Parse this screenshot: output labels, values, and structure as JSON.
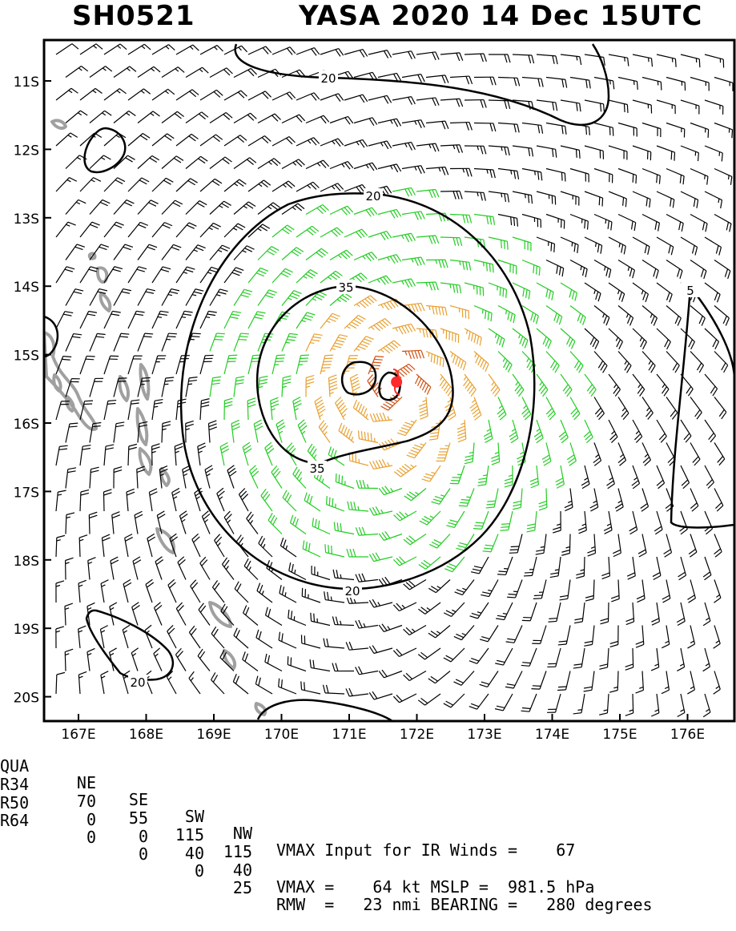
{
  "header": {
    "storm_id": "SH0521",
    "storm_info": "YASA 2020 14 Dec 15UTC"
  },
  "map": {
    "lat_labels": [
      "11S",
      "12S",
      "13S",
      "14S",
      "15S",
      "16S",
      "17S",
      "18S",
      "19S",
      "20S"
    ],
    "lon_labels": [
      "167E",
      "168E",
      "169E",
      "170E",
      "171E",
      "172E",
      "173E",
      "174E",
      "175E",
      "176E"
    ],
    "contour_labels": [
      "20",
      "20",
      "35",
      "35",
      "20",
      "5",
      "20"
    ],
    "colors": {
      "barb_default": "#000000",
      "barb_34kt": "#22cc22",
      "barb_50kt": "#e8a030",
      "barb_64kt": "#d05010",
      "contour": "#000000",
      "land": "#a0a0a0",
      "center_marker": "#ff2a2a"
    },
    "center": {
      "lon": 171.7,
      "lat": -15.4
    }
  },
  "table": {
    "header": [
      "QUA",
      "NE",
      "SE",
      "SW",
      "NW"
    ],
    "rows": [
      {
        "label": "R34",
        "values": [
          "70",
          "55",
          "115",
          "115"
        ]
      },
      {
        "label": "R50",
        "values": [
          "0",
          "0",
          "40",
          "40"
        ]
      },
      {
        "label": "R64",
        "values": [
          "0",
          "0",
          "0",
          "25"
        ]
      }
    ],
    "line1": "VMAX Input for IR Winds =    67",
    "line3": "VMAX =    64 kt MSLP =  981.5 hPa",
    "line4": "RMW  =   23 nmi BEARING =   280 degrees"
  }
}
